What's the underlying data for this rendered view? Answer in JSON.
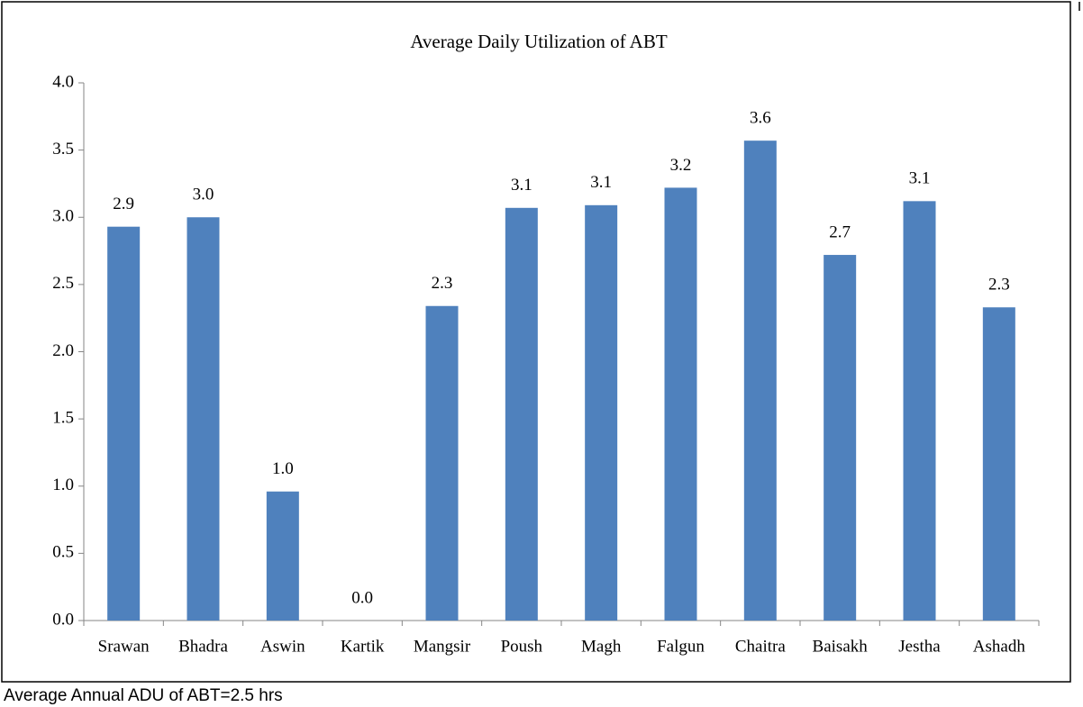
{
  "chart_data": {
    "type": "bar",
    "title": "Average Daily Utilization of ABT",
    "categories": [
      "Srawan",
      "Bhadra",
      "Aswin",
      "Kartik",
      "Mangsir",
      "Poush",
      "Magh",
      "Falgun",
      "Chaitra",
      "Baisakh",
      "Jestha",
      "Ashadh"
    ],
    "values": [
      2.93,
      3.0,
      0.96,
      0,
      2.34,
      3.07,
      3.09,
      3.22,
      3.57,
      2.72,
      3.12,
      2.33
    ],
    "value_labels": [
      "2.9",
      "3.0",
      "1.0",
      "0.0",
      "2.3",
      "3.1",
      "3.1",
      "3.2",
      "3.6",
      "2.7",
      "3.1",
      "2.3"
    ],
    "color": "#4f81bd",
    "ylim": [
      0,
      4
    ],
    "yticks": [
      {
        "value": 0,
        "label": "0.0"
      },
      {
        "value": 0.5,
        "label": "0.5"
      },
      {
        "value": 1,
        "label": "1.0"
      },
      {
        "value": 1.5,
        "label": "1.5"
      },
      {
        "value": 2,
        "label": "2.0"
      },
      {
        "value": 2.5,
        "label": "2.5"
      },
      {
        "value": 3,
        "label": "3.0"
      },
      {
        "value": 3.5,
        "label": "3.5"
      },
      {
        "value": 4,
        "label": "4.0"
      }
    ],
    "grid": false
  },
  "caption": "Average Annual ADU of ABT=2.5 hrs"
}
